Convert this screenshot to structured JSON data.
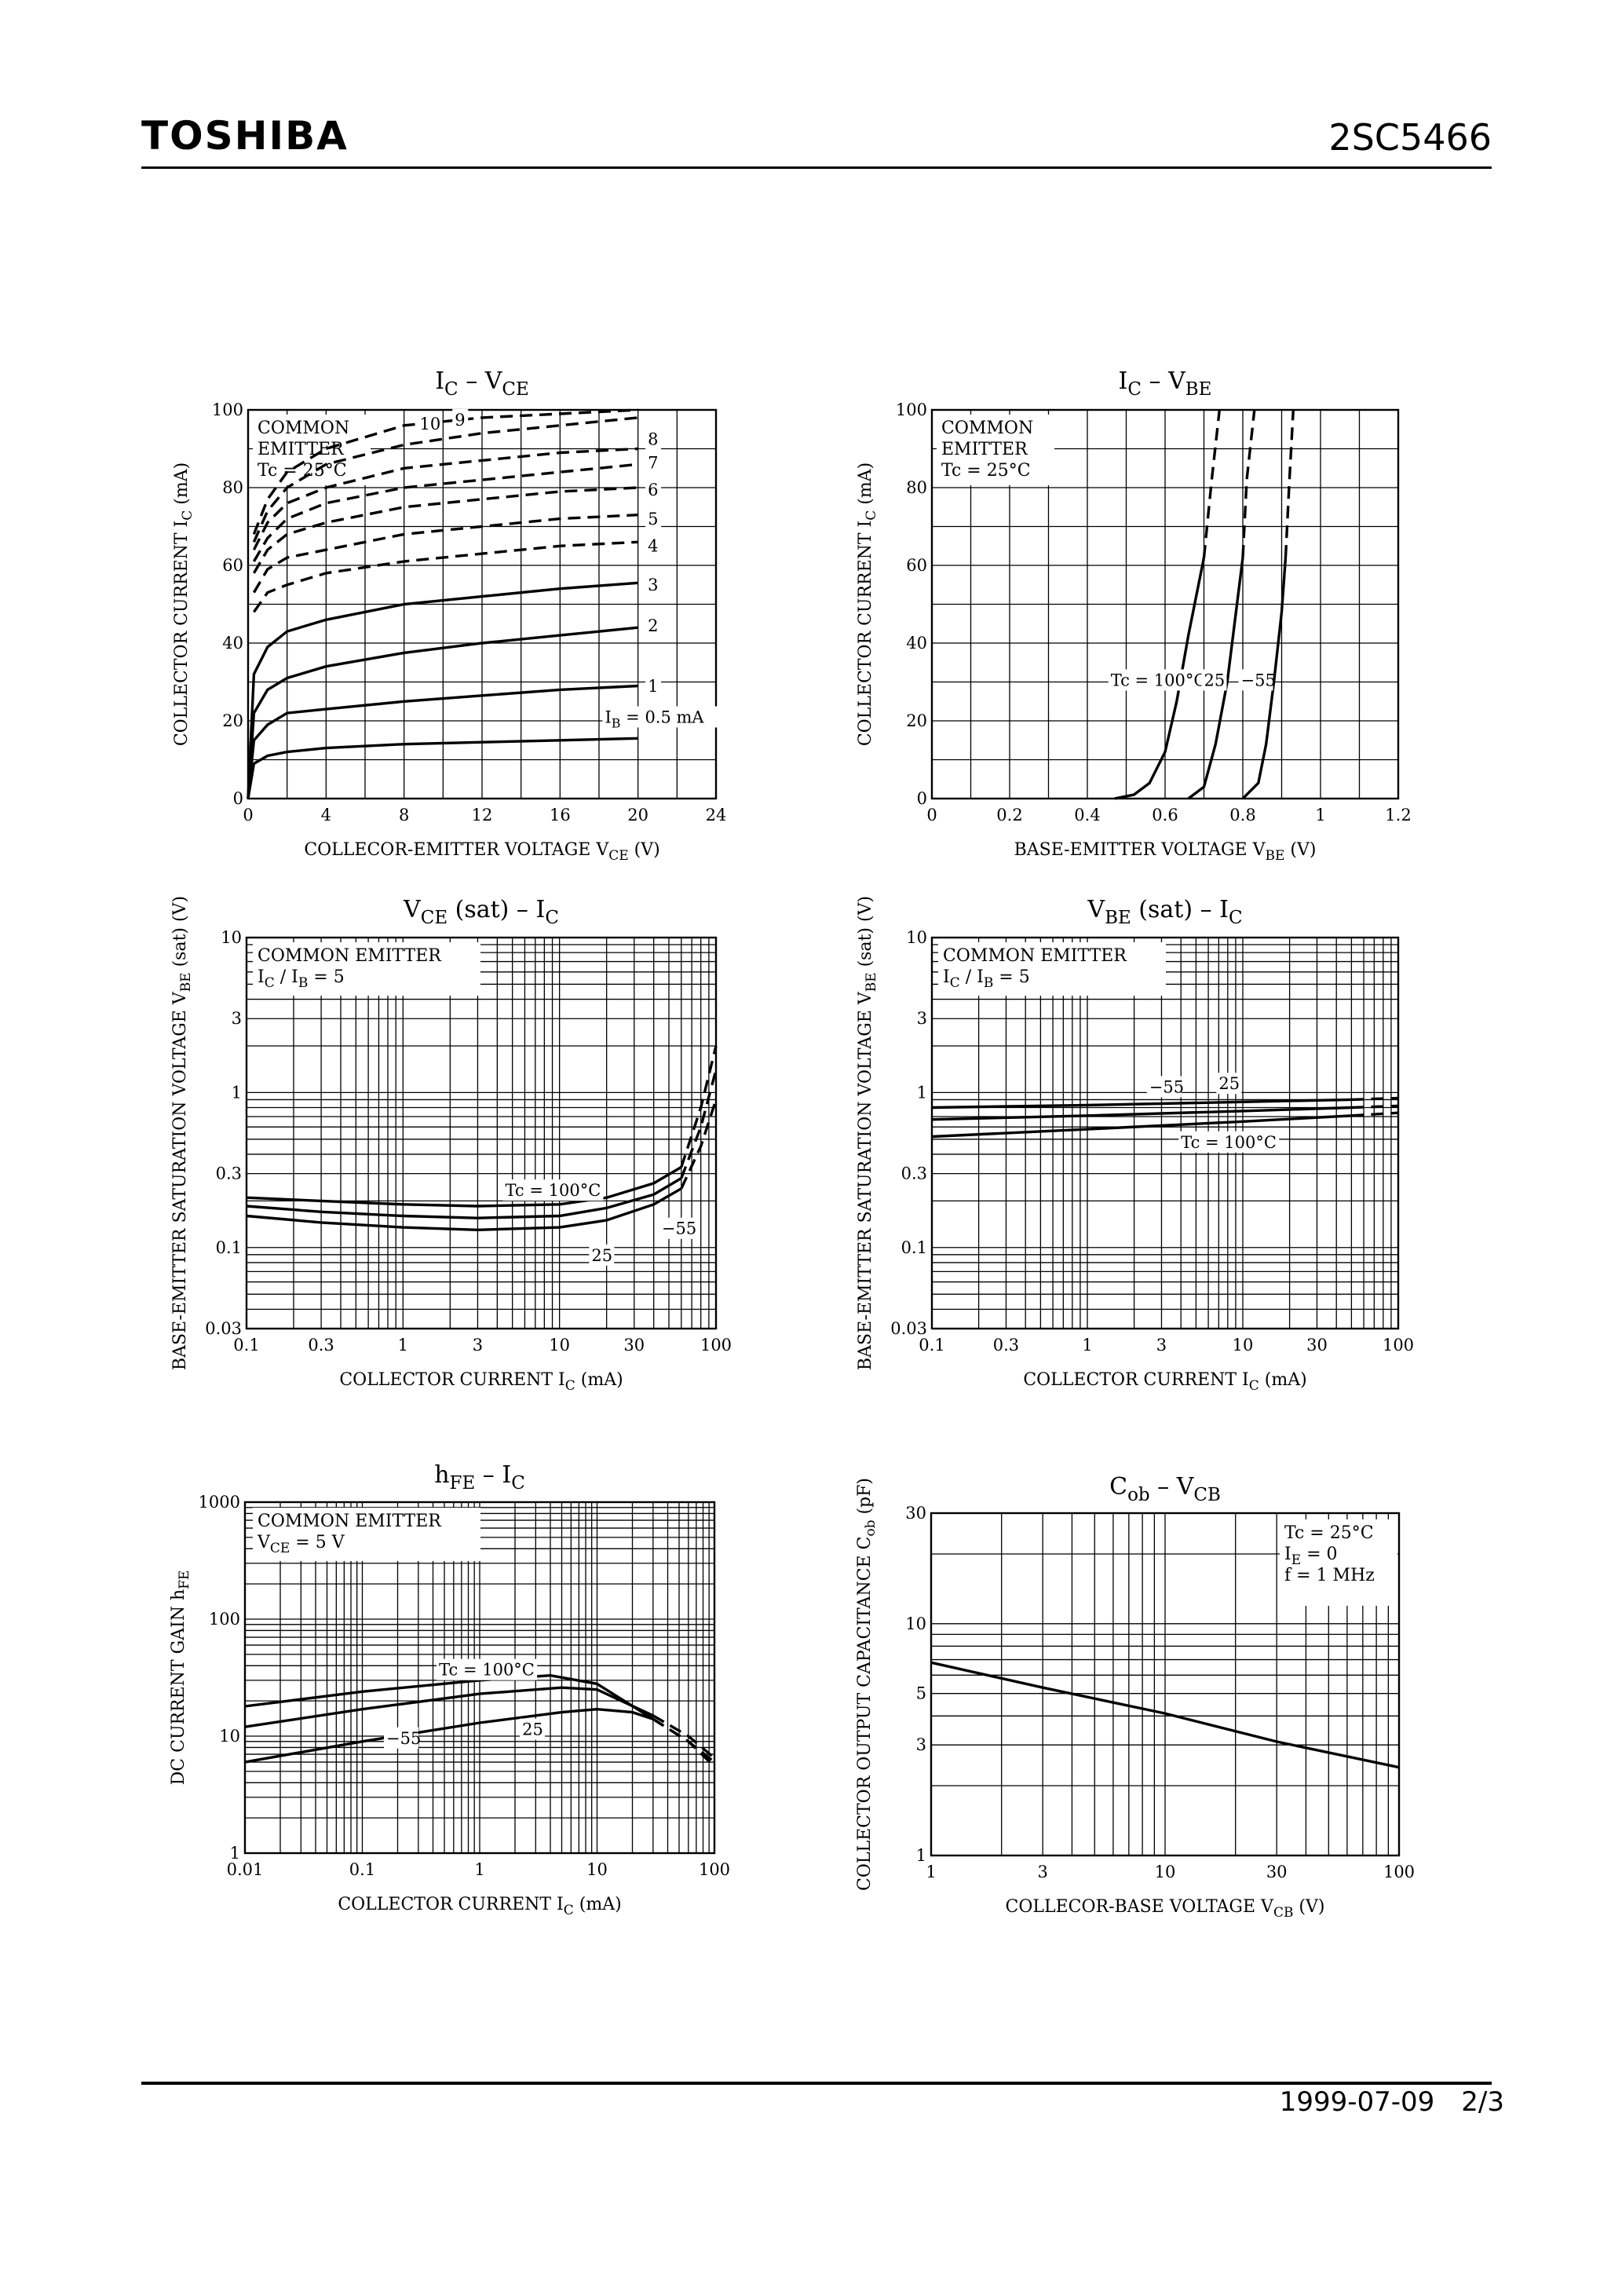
{
  "header": {
    "brand": "TOSHIBA",
    "part_number": "2SC5466"
  },
  "footer": {
    "date": "1999-07-09",
    "page": "2/3"
  },
  "chart_data": [
    {
      "id": "ic_vce",
      "type": "line",
      "title": "I_C – V_CE",
      "xlabel": "COLLECOR-EMITTER VOLTAGE  V_CE  (V)",
      "ylabel": "COLLECTOR CURRENT  I_C  (mA)",
      "xscale": "linear",
      "yscale": "linear",
      "xlim": [
        0,
        24
      ],
      "ylim": [
        0,
        100
      ],
      "xticks": [
        {
          "v": 0,
          "t": "0"
        },
        {
          "v": 4,
          "t": "4"
        },
        {
          "v": 8,
          "t": "8"
        },
        {
          "v": 12,
          "t": "12"
        },
        {
          "v": 16,
          "t": "16"
        },
        {
          "v": 20,
          "t": "20"
        },
        {
          "v": 24,
          "t": "24"
        }
      ],
      "yticks": [
        {
          "v": 0,
          "t": "0"
        },
        {
          "v": 20,
          "t": "20"
        },
        {
          "v": 40,
          "t": "40"
        },
        {
          "v": 60,
          "t": "60"
        },
        {
          "v": 80,
          "t": "80"
        },
        {
          "v": 100,
          "t": "100"
        }
      ],
      "note": [
        "COMMON",
        "EMITTER",
        "Tc = 25°C"
      ],
      "series": [
        {
          "name": "IB = 0.5 mA",
          "dashed": false,
          "x": [
            0,
            0.3,
            1,
            2,
            4,
            8,
            12,
            16,
            20
          ],
          "y": [
            0,
            9,
            11,
            12,
            13,
            14,
            14.5,
            15,
            15.5
          ]
        },
        {
          "name": "1",
          "dashed": false,
          "x": [
            0,
            0.3,
            1,
            2,
            4,
            8,
            12,
            16,
            20
          ],
          "y": [
            0,
            15,
            19,
            22,
            23,
            25,
            26.5,
            28,
            29
          ]
        },
        {
          "name": "2",
          "dashed": false,
          "x": [
            0,
            0.3,
            1,
            2,
            4,
            8,
            12,
            16,
            20
          ],
          "y": [
            0,
            22,
            28,
            31,
            34,
            37.5,
            40,
            42,
            44
          ]
        },
        {
          "name": "3",
          "dashed": false,
          "x": [
            0,
            0.3,
            1,
            2,
            4,
            8,
            12,
            16,
            20
          ],
          "y": [
            0,
            32,
            39,
            43,
            46,
            50,
            52,
            54,
            55.5
          ]
        },
        {
          "name": "4",
          "dashed": true,
          "x": [
            0.3,
            1,
            2,
            4,
            8,
            12,
            16,
            20
          ],
          "y": [
            48,
            53,
            55,
            58,
            61,
            63,
            65,
            66
          ]
        },
        {
          "name": "5",
          "dashed": true,
          "x": [
            0.3,
            1,
            2,
            4,
            8,
            12,
            16,
            20
          ],
          "y": [
            53,
            59,
            62,
            64,
            68,
            70,
            72,
            73
          ]
        },
        {
          "name": "6",
          "dashed": true,
          "x": [
            0.3,
            1,
            2,
            4,
            8,
            12,
            16,
            20
          ],
          "y": [
            58,
            64,
            68,
            71,
            75,
            77,
            79,
            80
          ]
        },
        {
          "name": "7",
          "dashed": true,
          "x": [
            0.3,
            1,
            2,
            4,
            8,
            12,
            16,
            20
          ],
          "y": [
            61,
            67,
            72,
            76,
            80,
            82,
            84,
            86
          ]
        },
        {
          "name": "8",
          "dashed": true,
          "x": [
            0.3,
            1,
            2,
            4,
            8,
            12,
            16,
            20
          ],
          "y": [
            64,
            71,
            76,
            80,
            85,
            87,
            89,
            90
          ]
        },
        {
          "name": "9",
          "dashed": true,
          "x": [
            0.3,
            1,
            2,
            4,
            8,
            12,
            16,
            20
          ],
          "y": [
            66,
            74,
            80,
            86,
            91,
            94,
            96,
            98
          ]
        },
        {
          "name": "10",
          "dashed": true,
          "x": [
            0.3,
            1,
            2,
            4,
            8,
            12,
            16,
            20
          ],
          "y": [
            68,
            77,
            84,
            90,
            96,
            98,
            99,
            100
          ]
        }
      ],
      "labels": [
        {
          "t": "I_B = 0.5 mA",
          "x": 18.3,
          "y": 19.5
        },
        {
          "t": "1",
          "x": 20.5,
          "y": 27.5
        },
        {
          "t": "2",
          "x": 20.5,
          "y": 43
        },
        {
          "t": "3",
          "x": 20.5,
          "y": 53.5
        },
        {
          "t": "4",
          "x": 20.5,
          "y": 63.5
        },
        {
          "t": "5",
          "x": 20.5,
          "y": 70.5
        },
        {
          "t": "6",
          "x": 20.5,
          "y": 78
        },
        {
          "t": "7",
          "x": 20.5,
          "y": 85
        },
        {
          "t": "8",
          "x": 20.5,
          "y": 91
        },
        {
          "t": "9",
          "x": 10.6,
          "y": 96
        },
        {
          "t": "10",
          "x": 8.8,
          "y": 95
        }
      ]
    },
    {
      "id": "ic_vbe",
      "type": "line",
      "title": "I_C – V_BE",
      "xlabel": "BASE-EMITTER VOLTAGE  V_BE  (V)",
      "ylabel": "COLLECTOR CURRENT  I_C  (mA)",
      "xscale": "linear",
      "yscale": "linear",
      "xlim": [
        0,
        1.2
      ],
      "ylim": [
        0,
        100
      ],
      "xticks": [
        {
          "v": 0,
          "t": "0"
        },
        {
          "v": 0.2,
          "t": "0.2"
        },
        {
          "v": 0.4,
          "t": "0.4"
        },
        {
          "v": 0.6,
          "t": "0.6"
        },
        {
          "v": 0.8,
          "t": "0.8"
        },
        {
          "v": 1.0,
          "t": "1"
        },
        {
          "v": 1.2,
          "t": "1.2"
        }
      ],
      "yticks": [
        {
          "v": 0,
          "t": "0"
        },
        {
          "v": 20,
          "t": "20"
        },
        {
          "v": 40,
          "t": "40"
        },
        {
          "v": 60,
          "t": "60"
        },
        {
          "v": 80,
          "t": "80"
        },
        {
          "v": 100,
          "t": "100"
        }
      ],
      "note": [
        "COMMON",
        "EMITTER",
        "Tc = 25°C"
      ],
      "series": [
        {
          "name": "Tc = 100°C",
          "solid_x": [
            0.47,
            0.52,
            0.56,
            0.6,
            0.63,
            0.66,
            0.7
          ],
          "solid_y": [
            0,
            1,
            4,
            12,
            25,
            42,
            62
          ],
          "dash_x": [
            0.7,
            0.72,
            0.74
          ],
          "dash_y": [
            62,
            82,
            100
          ]
        },
        {
          "name": "25",
          "solid_x": [
            0.66,
            0.7,
            0.73,
            0.76,
            0.78,
            0.8
          ],
          "solid_y": [
            0,
            3,
            14,
            30,
            46,
            62
          ],
          "dash_x": [
            0.8,
            0.81,
            0.83
          ],
          "dash_y": [
            62,
            82,
            100
          ]
        },
        {
          "name": "-55",
          "solid_x": [
            0.8,
            0.84,
            0.86,
            0.88,
            0.9,
            0.91
          ],
          "solid_y": [
            0,
            4,
            14,
            30,
            48,
            62
          ],
          "dash_x": [
            0.91,
            0.92,
            0.93
          ],
          "dash_y": [
            62,
            82,
            100
          ]
        }
      ],
      "labels": [
        {
          "t": "Tc = 100°C",
          "x": 0.46,
          "y": 29
        },
        {
          "t": "25",
          "x": 0.7,
          "y": 29
        },
        {
          "t": "−55",
          "x": 0.795,
          "y": 29
        }
      ]
    },
    {
      "id": "vce_sat_ic",
      "type": "line",
      "title": "V_CE (sat) – I_C",
      "xlabel": "COLLECTOR CURRENT  I_C  (mA)",
      "ylabel": "BASE-EMITTER SATURATION VOLTAGE  V_BE (sat)  (V)",
      "xscale": "log",
      "yscale": "log",
      "xlim": [
        0.1,
        100
      ],
      "ylim": [
        0.03,
        10
      ],
      "xticks": [
        {
          "v": 0.1,
          "t": "0.1"
        },
        {
          "v": 0.3,
          "t": "0.3"
        },
        {
          "v": 1,
          "t": "1"
        },
        {
          "v": 3,
          "t": "3"
        },
        {
          "v": 10,
          "t": "10"
        },
        {
          "v": 30,
          "t": "30"
        },
        {
          "v": 100,
          "t": "100"
        }
      ],
      "yticks": [
        {
          "v": 0.03,
          "t": "0.03"
        },
        {
          "v": 0.1,
          "t": "0.1"
        },
        {
          "v": 0.3,
          "t": "0.3"
        },
        {
          "v": 1,
          "t": "1"
        },
        {
          "v": 3,
          "t": "3"
        },
        {
          "v": 10,
          "t": "10"
        }
      ],
      "note": [
        "COMMON EMITTER",
        "I_C / I_B = 5"
      ],
      "series": [
        {
          "name": "Tc = 100°C",
          "solid_x": [
            0.1,
            0.3,
            1,
            3,
            10,
            20,
            40,
            60
          ],
          "solid_y": [
            0.21,
            0.2,
            0.19,
            0.185,
            0.19,
            0.21,
            0.26,
            0.33
          ],
          "dash_x": [
            60,
            80,
            100
          ],
          "dash_y": [
            0.33,
            0.8,
            2
          ]
        },
        {
          "name": "25",
          "solid_x": [
            0.1,
            0.3,
            1,
            3,
            10,
            20,
            40,
            60
          ],
          "solid_y": [
            0.185,
            0.17,
            0.16,
            0.155,
            0.16,
            0.18,
            0.22,
            0.28
          ],
          "dash_x": [
            60,
            80,
            100
          ],
          "dash_y": [
            0.28,
            0.6,
            1.4
          ]
        },
        {
          "name": "-55",
          "solid_x": [
            0.1,
            0.3,
            1,
            3,
            10,
            20,
            40,
            60
          ],
          "solid_y": [
            0.16,
            0.145,
            0.135,
            0.13,
            0.135,
            0.15,
            0.19,
            0.24
          ],
          "dash_x": [
            60,
            80,
            100
          ],
          "dash_y": [
            0.24,
            0.45,
            0.9
          ]
        }
      ],
      "labels": [
        {
          "t": "Tc = 100°C",
          "x": 4.5,
          "y": 0.215
        },
        {
          "t": "−55",
          "x": 45,
          "y": 0.122
        },
        {
          "t": "25",
          "x": 16,
          "y": 0.082
        }
      ]
    },
    {
      "id": "vbe_sat_ic",
      "type": "line",
      "title": "V_BE (sat) – I_C",
      "xlabel": "COLLECTOR CURRENT  I_C  (mA)",
      "ylabel": "BASE-EMITTER SATURATION VOLTAGE  V_BE (sat)  (V)",
      "xscale": "log",
      "yscale": "log",
      "xlim": [
        0.1,
        100
      ],
      "ylim": [
        0.03,
        10
      ],
      "xticks": [
        {
          "v": 0.1,
          "t": "0.1"
        },
        {
          "v": 0.3,
          "t": "0.3"
        },
        {
          "v": 1,
          "t": "1"
        },
        {
          "v": 3,
          "t": "3"
        },
        {
          "v": 10,
          "t": "10"
        },
        {
          "v": 30,
          "t": "30"
        },
        {
          "v": 100,
          "t": "100"
        }
      ],
      "yticks": [
        {
          "v": 0.03,
          "t": "0.03"
        },
        {
          "v": 0.1,
          "t": "0.1"
        },
        {
          "v": 0.3,
          "t": "0.3"
        },
        {
          "v": 1,
          "t": "1"
        },
        {
          "v": 3,
          "t": "3"
        },
        {
          "v": 10,
          "t": "10"
        }
      ],
      "note": [
        "COMMON EMITTER",
        "I_C / I_B = 5"
      ],
      "series": [
        {
          "name": "-55",
          "solid_x": [
            0.1,
            1,
            10,
            50
          ],
          "solid_y": [
            0.8,
            0.83,
            0.87,
            0.9
          ],
          "dash_x": [
            50,
            100
          ],
          "dash_y": [
            0.9,
            0.92
          ]
        },
        {
          "name": "25",
          "solid_x": [
            0.1,
            1,
            10,
            50
          ],
          "solid_y": [
            0.67,
            0.71,
            0.76,
            0.8
          ],
          "dash_x": [
            50,
            100
          ],
          "dash_y": [
            0.8,
            0.82
          ]
        },
        {
          "name": "Tc = 100°C",
          "solid_x": [
            0.1,
            1,
            10,
            50
          ],
          "solid_y": [
            0.52,
            0.58,
            0.65,
            0.71
          ],
          "dash_x": [
            50,
            100
          ],
          "dash_y": [
            0.71,
            0.74
          ]
        }
      ],
      "labels": [
        {
          "t": "−55",
          "x": 2.5,
          "y": 1.0
        },
        {
          "t": "25",
          "x": 7.0,
          "y": 1.05
        },
        {
          "t": "Tc = 100°C",
          "x": 4.0,
          "y": 0.44
        }
      ]
    },
    {
      "id": "hfe_ic",
      "type": "line",
      "title": "h_FE – I_C",
      "xlabel": "COLLECTOR CURRENT  I_C  (mA)",
      "ylabel": "DC CURRENT GAIN  h_FE",
      "xscale": "log",
      "yscale": "log",
      "xlim": [
        0.01,
        100
      ],
      "ylim": [
        1,
        1000
      ],
      "xticks": [
        {
          "v": 0.01,
          "t": "0.01"
        },
        {
          "v": 0.1,
          "t": "0.1"
        },
        {
          "v": 1,
          "t": "1"
        },
        {
          "v": 10,
          "t": "10"
        },
        {
          "v": 100,
          "t": "100"
        }
      ],
      "yticks": [
        {
          "v": 1,
          "t": "1"
        },
        {
          "v": 10,
          "t": "10"
        },
        {
          "v": 100,
          "t": "100"
        },
        {
          "v": 1000,
          "t": "1000"
        }
      ],
      "note": [
        "COMMON EMITTER",
        "V_CE = 5 V"
      ],
      "series": [
        {
          "name": "Tc = 100°C",
          "solid_x": [
            0.01,
            0.1,
            1,
            4,
            10,
            30
          ],
          "solid_y": [
            18,
            24,
            30,
            33,
            28,
            14
          ],
          "dash_x": [
            30,
            60,
            100
          ],
          "dash_y": [
            14,
            9,
            6
          ]
        },
        {
          "name": "25",
          "solid_x": [
            0.01,
            0.1,
            1,
            5,
            10,
            30
          ],
          "solid_y": [
            12,
            17,
            23,
            26,
            25,
            15
          ],
          "dash_x": [
            30,
            60,
            100
          ],
          "dash_y": [
            15,
            10,
            6.5
          ]
        },
        {
          "name": "-55",
          "solid_x": [
            0.01,
            0.1,
            1,
            5,
            10,
            20,
            30
          ],
          "solid_y": [
            6,
            9,
            13,
            16,
            17,
            16,
            14
          ],
          "dash_x": [
            30,
            60,
            100
          ],
          "dash_y": [
            14,
            9,
            5.5
          ]
        }
      ],
      "labels": [
        {
          "t": "Tc = 100°C",
          "x": 0.45,
          "y": 33
        },
        {
          "t": "25",
          "x": 2.3,
          "y": 10.2
        },
        {
          "t": "−55",
          "x": 0.16,
          "y": 8.6
        }
      ]
    },
    {
      "id": "cob_vcb",
      "type": "line",
      "title": "C_ob – V_CB",
      "xlabel": "COLLECOR-BASE VOLTAGE  V_CB  (V)",
      "ylabel": "COLLECTOR OUTPUT CAPACITANCE  C_ob  (pF)",
      "xscale": "log",
      "yscale": "log",
      "xlim": [
        1,
        100
      ],
      "ylim": [
        1,
        30
      ],
      "xticks": [
        {
          "v": 1,
          "t": "1"
        },
        {
          "v": 3,
          "t": "3"
        },
        {
          "v": 10,
          "t": "10"
        },
        {
          "v": 30,
          "t": "30"
        },
        {
          "v": 100,
          "t": "100"
        }
      ],
      "yticks": [
        {
          "v": 1,
          "t": "1"
        },
        {
          "v": 3,
          "t": "3"
        },
        {
          "v": 5,
          "t": "5"
        },
        {
          "v": 10,
          "t": "10"
        },
        {
          "v": 30,
          "t": "30"
        }
      ],
      "note": [
        "Tc = 25°C",
        "I_E = 0",
        "f = 1 MHz"
      ],
      "series": [
        {
          "name": "Cob",
          "solid_x": [
            1,
            3,
            10,
            30,
            100
          ],
          "solid_y": [
            6.8,
            5.3,
            4.1,
            3.1,
            2.4
          ],
          "dash_x": [],
          "dash_y": []
        }
      ],
      "labels": []
    }
  ]
}
